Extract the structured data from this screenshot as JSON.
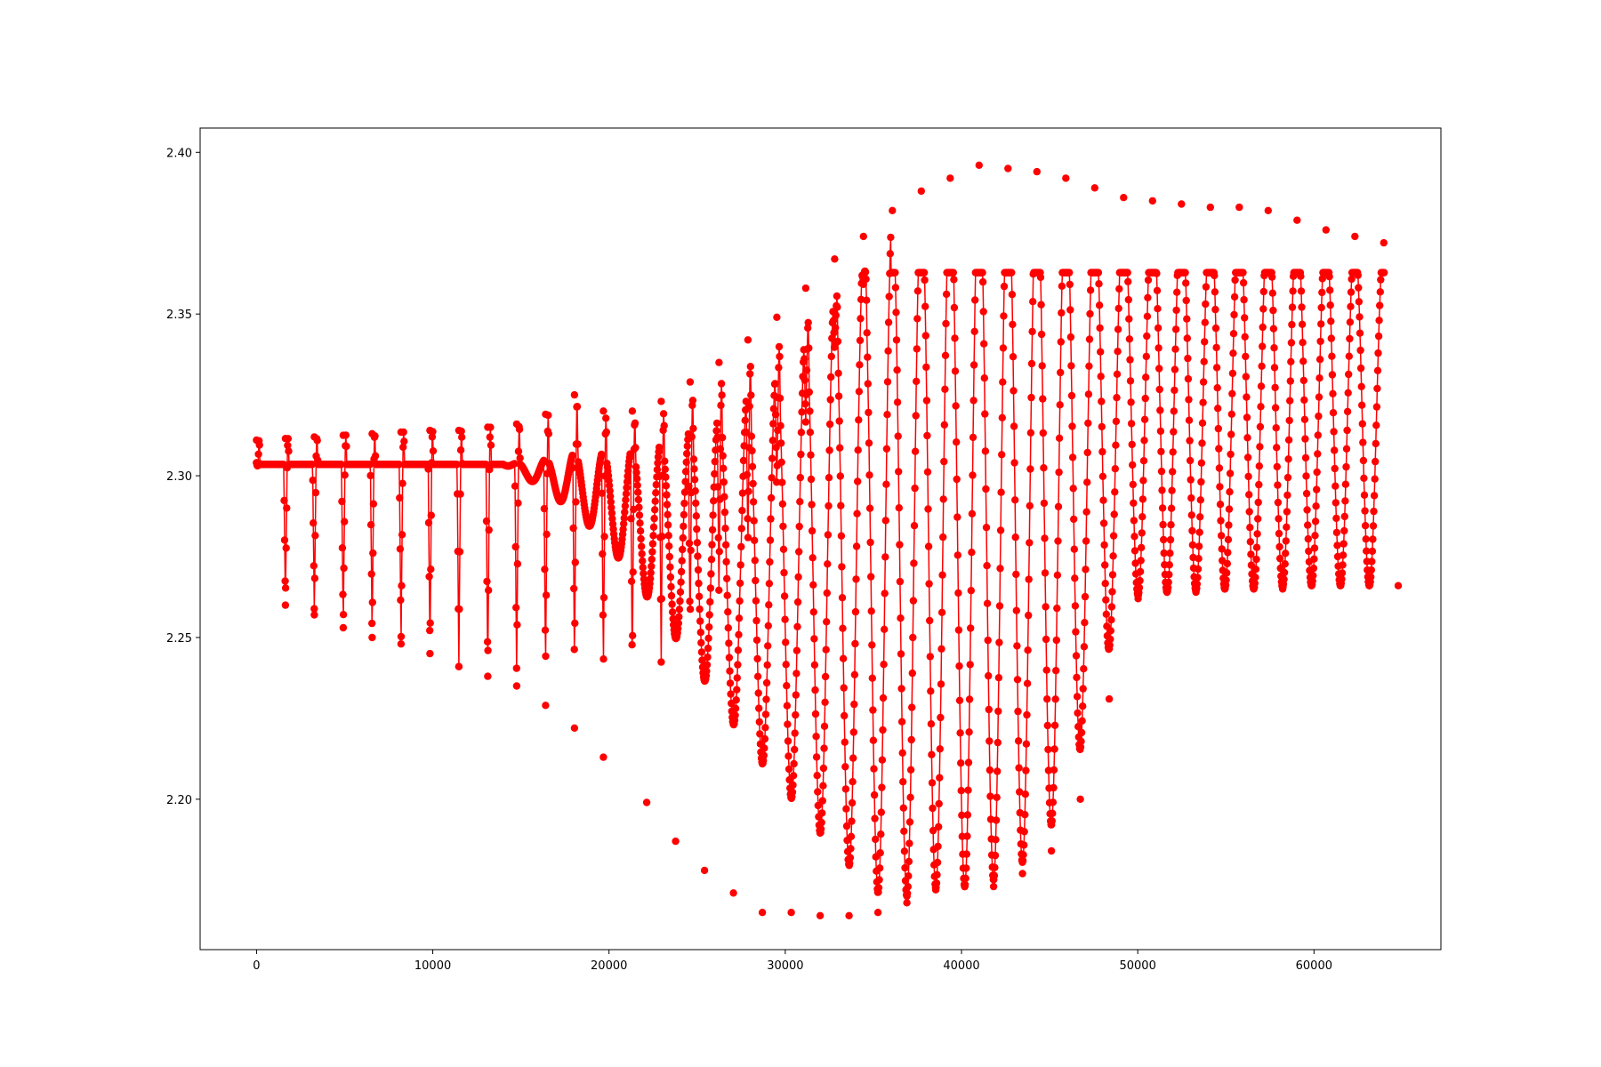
{
  "chart_data": {
    "type": "scatter",
    "title": "",
    "xlabel": "",
    "ylabel": "",
    "xlim": [
      -3200,
      67200
    ],
    "ylim": [
      2.1535,
      2.4075
    ],
    "x_ticks": [
      "0",
      "10000",
      "20000",
      "30000",
      "40000",
      "50000",
      "60000"
    ],
    "y_ticks": [
      "2.20",
      "2.25",
      "2.30",
      "2.35",
      "2.40"
    ],
    "grid": false,
    "legend": "none",
    "series": [
      {
        "color": "#ff0000",
        "marker": "circle",
        "line": true,
        "baseline": 2.3035,
        "clip_max": 2.3628,
        "x_start": 0,
        "x_end": 64000,
        "cycles": [
          {
            "x": 0,
            "peak": 2.311,
            "trough": 2.304
          },
          {
            "x": 1640,
            "peak": 2.3115,
            "trough": 2.26
          },
          {
            "x": 3280,
            "peak": 2.312,
            "trough": 2.257
          },
          {
            "x": 4920,
            "peak": 2.3125,
            "trough": 2.253
          },
          {
            "x": 6560,
            "peak": 2.313,
            "trough": 2.25
          },
          {
            "x": 8200,
            "peak": 2.3135,
            "trough": 2.248
          },
          {
            "x": 9840,
            "peak": 2.314,
            "trough": 2.245
          },
          {
            "x": 11480,
            "peak": 2.314,
            "trough": 2.241
          },
          {
            "x": 13120,
            "peak": 2.315,
            "trough": 2.238
          },
          {
            "x": 14760,
            "peak": 2.316,
            "trough": 2.235
          },
          {
            "x": 16400,
            "peak": 2.319,
            "trough": 2.229
          },
          {
            "x": 18040,
            "peak": 2.325,
            "trough": 2.222
          },
          {
            "x": 19680,
            "peak": 2.32,
            "trough": 2.213
          },
          {
            "x": 21320,
            "peak": 2.32,
            "trough": 2.199
          },
          {
            "x": 22960,
            "peak": 2.323,
            "trough": 2.187
          },
          {
            "x": 24600,
            "peak": 2.329,
            "trough": 2.178
          },
          {
            "x": 26240,
            "peak": 2.335,
            "trough": 2.171
          },
          {
            "x": 27880,
            "peak": 2.342,
            "trough": 2.165
          },
          {
            "x": 29520,
            "peak": 2.349,
            "trough": 2.165
          },
          {
            "x": 31160,
            "peak": 2.358,
            "trough": 2.164
          },
          {
            "x": 32800,
            "peak": 2.367,
            "trough": 2.164
          },
          {
            "x": 34440,
            "peak": 2.374,
            "trough": 2.165
          },
          {
            "x": 36080,
            "peak": 2.382,
            "trough": 2.168
          },
          {
            "x": 37720,
            "peak": 2.388,
            "trough": 2.172
          },
          {
            "x": 39360,
            "peak": 2.392,
            "trough": 2.173
          },
          {
            "x": 41000,
            "peak": 2.396,
            "trough": 2.173
          },
          {
            "x": 42640,
            "peak": 2.395,
            "trough": 2.177
          },
          {
            "x": 44280,
            "peak": 2.394,
            "trough": 2.184
          },
          {
            "x": 45920,
            "peak": 2.392,
            "trough": 2.2
          },
          {
            "x": 47560,
            "peak": 2.389,
            "trough": 2.231
          },
          {
            "x": 49200,
            "peak": 2.386,
            "trough": 2.262
          },
          {
            "x": 50840,
            "peak": 2.385,
            "trough": 2.264
          },
          {
            "x": 52480,
            "peak": 2.384,
            "trough": 2.264
          },
          {
            "x": 54120,
            "peak": 2.383,
            "trough": 2.265
          },
          {
            "x": 55760,
            "peak": 2.383,
            "trough": 2.265
          },
          {
            "x": 57400,
            "peak": 2.382,
            "trough": 2.265
          },
          {
            "x": 59040,
            "peak": 2.379,
            "trough": 2.266
          },
          {
            "x": 60680,
            "peak": 2.376,
            "trough": 2.266
          },
          {
            "x": 62320,
            "peak": 2.374,
            "trough": 2.266
          },
          {
            "x": 63960,
            "peak": 2.372,
            "trough": 2.266
          }
        ]
      }
    ]
  }
}
